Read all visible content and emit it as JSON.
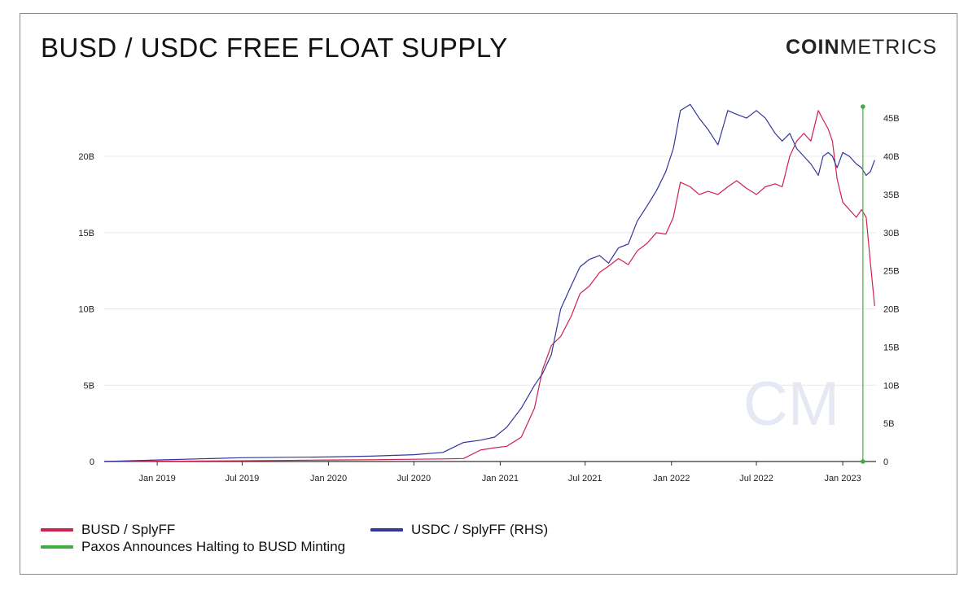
{
  "title": "BUSD / USDC FREE FLOAT SUPPLY",
  "brand": {
    "bold": "COIN",
    "light": "METRICS"
  },
  "watermark": "CM",
  "colors": {
    "busd": "#d0214f",
    "usdc": "#33369a",
    "event": "#3fae3f",
    "grid": "#e8e8e8",
    "axis": "#333333"
  },
  "chart_data": {
    "type": "line",
    "title": "BUSD / USDC FREE FLOAT SUPPLY",
    "x_ticks": [
      "Jan 2019",
      "Jul 2019",
      "Jan 2020",
      "Jul 2020",
      "Jan 2021",
      "Jul 2021",
      "Jan 2022",
      "Jul 2022",
      "Jan 2023"
    ],
    "xlim": [
      "2018-09-10",
      "2023-03-13"
    ],
    "y_left": {
      "label": "",
      "lim": [
        0,
        24
      ],
      "ticks": [
        0,
        5,
        10,
        15,
        20
      ],
      "tick_labels": [
        "0",
        "5B",
        "10B",
        "15B",
        "20B"
      ]
    },
    "y_right": {
      "label": "",
      "lim": [
        0,
        48
      ],
      "ticks": [
        0,
        5,
        10,
        15,
        20,
        25,
        30,
        35,
        40,
        45
      ],
      "tick_labels": [
        "0",
        "5B",
        "10B",
        "15B",
        "20B",
        "25B",
        "30B",
        "35B",
        "40B",
        "45B"
      ]
    },
    "series": [
      {
        "name": "BUSD / SplyFF",
        "axis": "left",
        "x": [
          "2018-09-10",
          "2019-01-01",
          "2019-07-01",
          "2020-01-01",
          "2020-04-01",
          "2020-07-01",
          "2020-09-01",
          "2020-10-15",
          "2020-11-20",
          "2020-12-20",
          "2021-01-15",
          "2021-02-15",
          "2021-03-15",
          "2021-04-01",
          "2021-04-20",
          "2021-05-10",
          "2021-06-01",
          "2021-06-20",
          "2021-07-10",
          "2021-08-01",
          "2021-08-20",
          "2021-09-10",
          "2021-10-01",
          "2021-10-20",
          "2021-11-10",
          "2021-11-30",
          "2021-12-20",
          "2022-01-05",
          "2022-01-20",
          "2022-02-10",
          "2022-03-01",
          "2022-03-20",
          "2022-04-10",
          "2022-05-01",
          "2022-05-20",
          "2022-06-10",
          "2022-07-01",
          "2022-07-20",
          "2022-08-10",
          "2022-08-25",
          "2022-09-10",
          "2022-09-25",
          "2022-10-10",
          "2022-10-25",
          "2022-11-10",
          "2022-11-20",
          "2022-12-01",
          "2022-12-10",
          "2022-12-20",
          "2023-01-01",
          "2023-01-15",
          "2023-01-30",
          "2023-02-10",
          "2023-02-20",
          "2023-03-01",
          "2023-03-10"
        ],
        "values": [
          0,
          0.02,
          0.05,
          0.1,
          0.12,
          0.15,
          0.17,
          0.2,
          0.75,
          0.9,
          1.0,
          1.6,
          3.5,
          6.0,
          7.6,
          8.2,
          9.5,
          11.0,
          11.5,
          12.4,
          12.8,
          13.3,
          12.9,
          13.8,
          14.3,
          15.0,
          14.9,
          16.0,
          18.3,
          18.0,
          17.5,
          17.7,
          17.5,
          18.0,
          18.4,
          17.9,
          17.5,
          18.0,
          18.2,
          18.0,
          20.0,
          21.0,
          21.5,
          21.0,
          23.0,
          22.4,
          21.8,
          21.0,
          18.5,
          17.0,
          16.5,
          16.0,
          16.5,
          16.0,
          13.0,
          10.2
        ]
      },
      {
        "name": "USDC / SplyFF (RHS)",
        "axis": "right",
        "x": [
          "2018-09-10",
          "2019-01-01",
          "2019-07-01",
          "2020-01-01",
          "2020-04-01",
          "2020-07-01",
          "2020-09-01",
          "2020-10-15",
          "2020-11-20",
          "2020-12-20",
          "2021-01-15",
          "2021-02-15",
          "2021-03-15",
          "2021-04-01",
          "2021-04-20",
          "2021-05-10",
          "2021-06-01",
          "2021-06-20",
          "2021-07-10",
          "2021-08-01",
          "2021-08-20",
          "2021-09-10",
          "2021-10-01",
          "2021-10-20",
          "2021-11-10",
          "2021-11-30",
          "2021-12-20",
          "2022-01-05",
          "2022-01-20",
          "2022-02-10",
          "2022-03-01",
          "2022-03-20",
          "2022-04-10",
          "2022-05-01",
          "2022-05-20",
          "2022-06-10",
          "2022-07-01",
          "2022-07-20",
          "2022-08-10",
          "2022-08-25",
          "2022-09-10",
          "2022-09-25",
          "2022-10-10",
          "2022-10-25",
          "2022-11-10",
          "2022-11-20",
          "2022-12-01",
          "2022-12-10",
          "2022-12-20",
          "2023-01-01",
          "2023-01-15",
          "2023-01-30",
          "2023-02-10",
          "2023-02-20",
          "2023-03-01",
          "2023-03-10"
        ],
        "values": [
          0,
          0.2,
          0.5,
          0.6,
          0.7,
          0.9,
          1.2,
          2.5,
          2.8,
          3.2,
          4.5,
          7.0,
          10.0,
          11.5,
          14.0,
          20.0,
          23.0,
          25.5,
          26.5,
          27.0,
          26.0,
          28.0,
          28.5,
          31.5,
          33.5,
          35.5,
          38.0,
          41.0,
          46.0,
          46.8,
          45.0,
          43.5,
          41.5,
          46.0,
          45.5,
          45.0,
          46.0,
          45.0,
          43.0,
          42.0,
          43.0,
          41.0,
          40.0,
          39.0,
          37.5,
          40.0,
          40.5,
          40.0,
          38.5,
          40.5,
          40.0,
          39.0,
          38.5,
          37.5,
          38.0,
          39.5
        ]
      }
    ],
    "annotations": [
      {
        "name": "Paxos Announces Halting to BUSD Minting",
        "type": "vline",
        "x": "2023-02-13",
        "y_right_top": 46.5
      }
    ],
    "legend": [
      "BUSD / SplyFF",
      "USDC / SplyFF (RHS)",
      "Paxos Announces Halting to BUSD Minting"
    ]
  }
}
